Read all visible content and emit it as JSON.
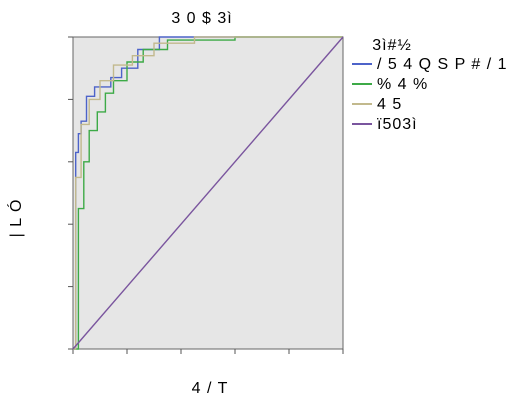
{
  "chart_data": {
    "type": "line",
    "title": "3 0 $ 3ì",
    "xlabel": "4 / T",
    "ylabel": "| L Ó",
    "xlim": [
      0,
      1
    ],
    "ylim": [
      0,
      1
    ],
    "xticks": [
      0,
      0.2,
      0.4,
      0.6,
      0.8,
      1
    ],
    "yticks": [
      0,
      0.2,
      0.4,
      0.6,
      0.8,
      1
    ],
    "tick_labels_visible": false,
    "grid": false,
    "plot_background": "#e6e6e6",
    "legend": {
      "title": "3ì#½",
      "placement": "outside-right"
    },
    "series": [
      {
        "name": "/ 5 4 Q S P # / 1",
        "color": "#4d63c9",
        "step": true,
        "x": [
          0,
          0.01,
          0.01,
          0.02,
          0.02,
          0.03,
          0.03,
          0.05,
          0.05,
          0.08,
          0.08,
          0.14,
          0.14,
          0.18,
          0.18,
          0.24,
          0.24,
          0.32,
          0.32,
          0.5,
          0.5,
          1.0
        ],
        "y": [
          0,
          0,
          0.63,
          0.63,
          0.69,
          0.69,
          0.73,
          0.73,
          0.81,
          0.81,
          0.84,
          0.84,
          0.87,
          0.87,
          0.9,
          0.9,
          0.96,
          0.96,
          1.0,
          1.0,
          1.0,
          1.0
        ]
      },
      {
        "name": "% 4 %",
        "color": "#3daa47",
        "step": true,
        "x": [
          0,
          0.02,
          0.02,
          0.04,
          0.04,
          0.06,
          0.06,
          0.09,
          0.09,
          0.12,
          0.12,
          0.15,
          0.15,
          0.2,
          0.2,
          0.26,
          0.26,
          0.35,
          0.35,
          0.6,
          0.6,
          1.0
        ],
        "y": [
          0,
          0,
          0.45,
          0.45,
          0.6,
          0.6,
          0.7,
          0.7,
          0.76,
          0.76,
          0.82,
          0.82,
          0.86,
          0.86,
          0.92,
          0.92,
          0.96,
          0.96,
          0.99,
          0.99,
          1.0,
          1.0
        ]
      },
      {
        "name": "4 5",
        "color": "#c2b98d",
        "step": true,
        "x": [
          0,
          0.01,
          0.01,
          0.03,
          0.03,
          0.06,
          0.06,
          0.1,
          0.1,
          0.15,
          0.15,
          0.22,
          0.22,
          0.3,
          0.3,
          0.45,
          0.45,
          1.0
        ],
        "y": [
          0,
          0,
          0.55,
          0.55,
          0.72,
          0.72,
          0.8,
          0.8,
          0.86,
          0.86,
          0.91,
          0.91,
          0.94,
          0.94,
          0.98,
          0.98,
          1.0,
          1.0
        ]
      },
      {
        "name": "ï503ì",
        "color": "#7a559e",
        "step": false,
        "x": [
          0,
          1
        ],
        "y": [
          0,
          1
        ]
      }
    ]
  }
}
